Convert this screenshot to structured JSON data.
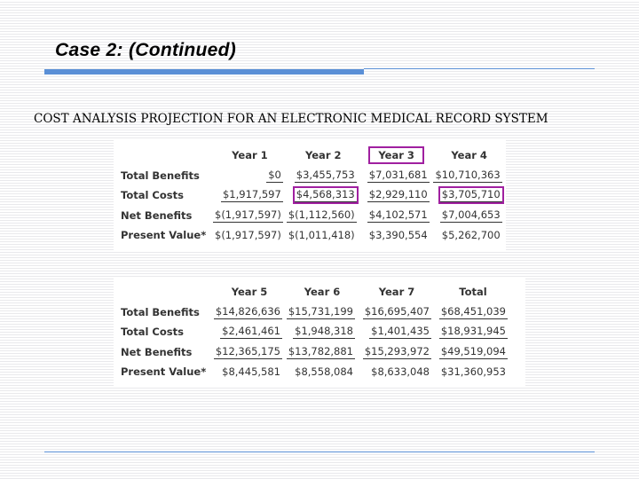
{
  "slide": {
    "title": "Case 2: (Continued)",
    "subtitle": "COST ANALYSIS PROJECTION FOR AN ELECTRONIC MEDICAL RECORD SYSTEM"
  },
  "colors": {
    "accent": "#5a8fd6",
    "highlight": "#a020a0"
  },
  "table1": {
    "columns": [
      "Year 1",
      "Year 2",
      "Year 3",
      "Year 4"
    ],
    "rows": {
      "total_benefits": {
        "label": "Total Benefits",
        "values": [
          "$0",
          "$3,455,753",
          "$7,031,681",
          "$10,710,363"
        ]
      },
      "total_costs": {
        "label": "Total Costs",
        "values": [
          "$1,917,597",
          "$4,568,313",
          "$2,929,110",
          "$3,705,710"
        ]
      },
      "net_benefits": {
        "label": "Net Benefits",
        "values": [
          "$(1,917,597)",
          "$(1,112,560)",
          "$4,102,571",
          "$7,004,653"
        ]
      },
      "present_value": {
        "label": "Present Value*",
        "values": [
          "$(1,917,597)",
          "$(1,011,418)",
          "$3,390,554",
          "$5,262,700"
        ]
      }
    }
  },
  "table2": {
    "columns": [
      "Year 5",
      "Year 6",
      "Year 7",
      "Total"
    ],
    "rows": {
      "total_benefits": {
        "label": "Total Benefits",
        "values": [
          "$14,826,636",
          "$15,731,199",
          "$16,695,407",
          "$68,451,039"
        ]
      },
      "total_costs": {
        "label": "Total Costs",
        "values": [
          "$2,461,461",
          "$1,948,318",
          "$1,401,435",
          "$18,931,945"
        ]
      },
      "net_benefits": {
        "label": "Net Benefits",
        "values": [
          "$12,365,175",
          "$13,782,881",
          "$15,293,972",
          "$49,519,094"
        ]
      },
      "present_value": {
        "label": "Present Value*",
        "values": [
          "$8,445,581",
          "$8,558,084",
          "$8,633,048",
          "$31,360,953"
        ]
      }
    }
  }
}
